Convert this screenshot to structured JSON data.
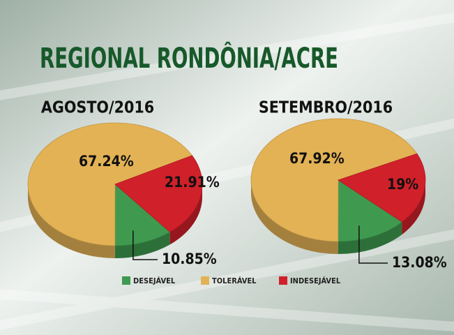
{
  "title": "REGIONAL RONDÔNIA/ACRE",
  "chart_data": [
    {
      "type": "pie",
      "title": "AGOSTO/2016",
      "categories": [
        "DESEJÁVEL",
        "TOLERÁVEL",
        "INDESEJÁVEL"
      ],
      "values": [
        10.85,
        67.24,
        21.91
      ],
      "value_labels": [
        "10.85%",
        "67.24%",
        "21.91%"
      ],
      "colors": [
        "#3f9a4f",
        "#e3b255",
        "#d0202a"
      ]
    },
    {
      "type": "pie",
      "title": "SETEMBRO/2016",
      "categories": [
        "DESEJÁVEL",
        "TOLERÁVEL",
        "INDESEJÁVEL"
      ],
      "values": [
        13.08,
        67.92,
        19
      ],
      "value_labels": [
        "13.08%",
        "67.92%",
        "19%"
      ],
      "colors": [
        "#3f9a4f",
        "#e3b255",
        "#d0202a"
      ]
    }
  ]
}
